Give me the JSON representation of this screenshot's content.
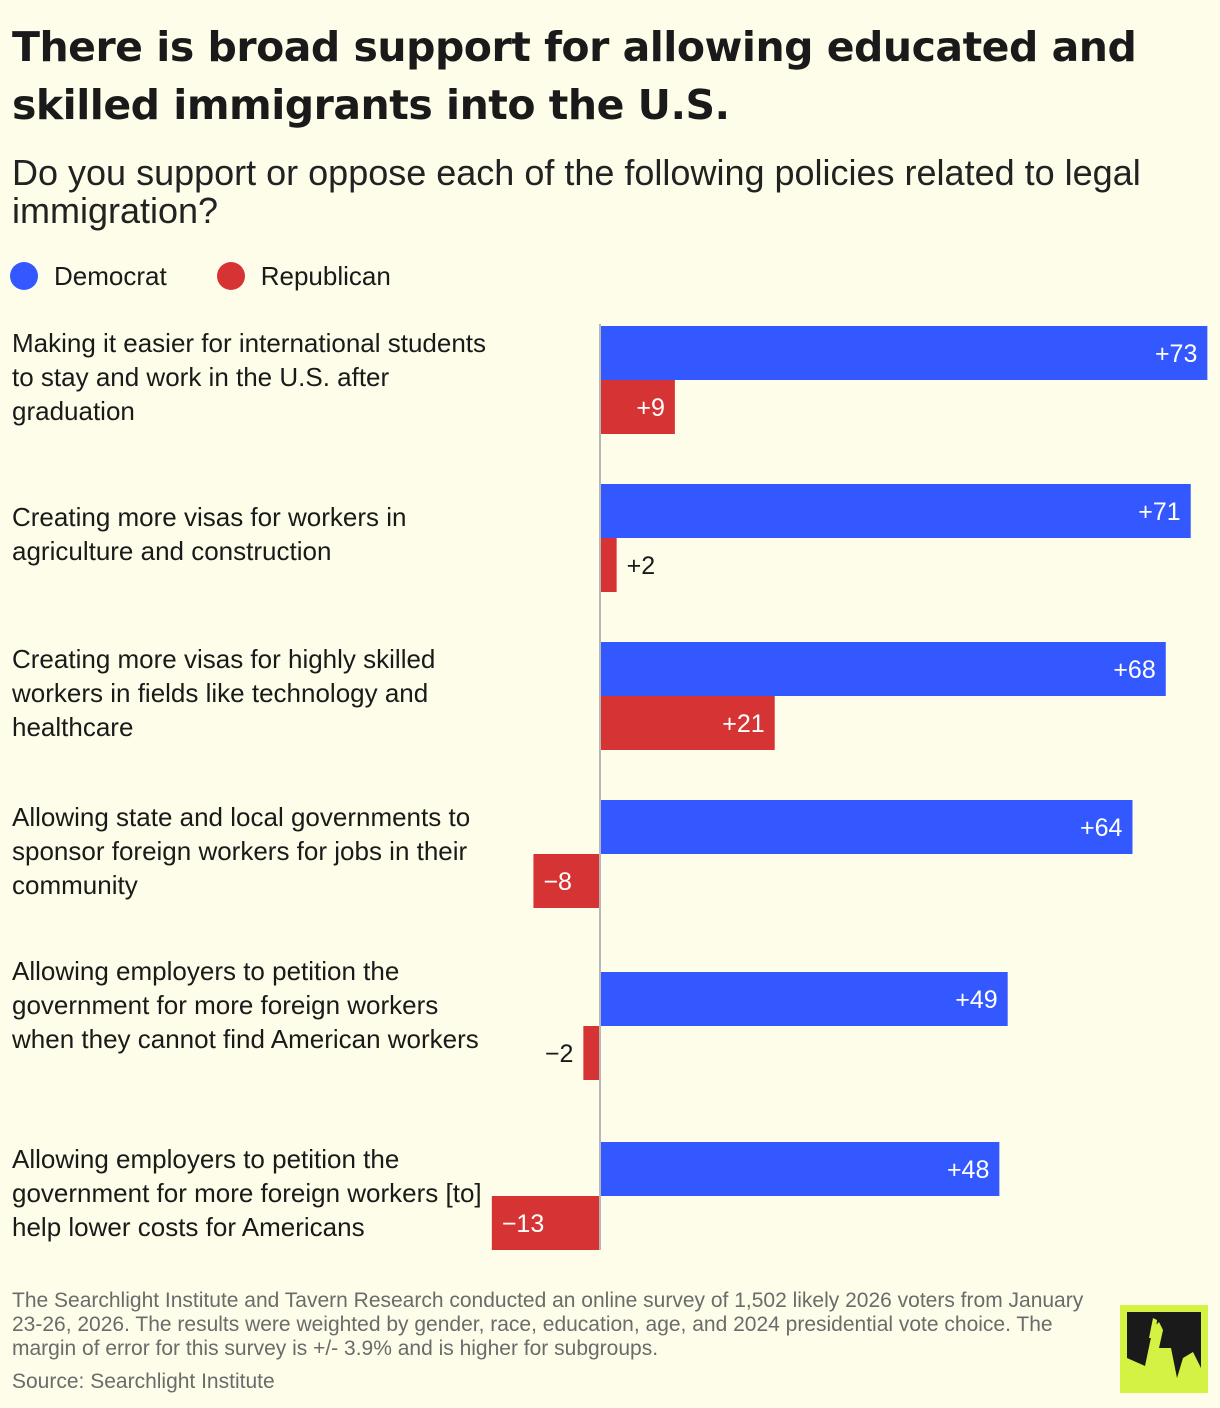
{
  "header": {
    "title": "There is broad support for allowing educated and skilled immigrants into the U.S.",
    "subtitle": "Do you support or oppose each of the following policies related to legal immigration?"
  },
  "legend": [
    {
      "label": "Democrat",
      "color": "#3358ff"
    },
    {
      "label": "Republican",
      "color": "#d63434"
    }
  ],
  "chart_data": {
    "type": "bar",
    "orientation": "horizontal",
    "categories": [
      "Making it easier for international students to stay and work in the U.S. after graduation",
      "Creating more visas for workers in agriculture and construction",
      "Creating more visas for highly skilled workers in fields like technology and healthcare",
      "Allowing state and local governments to sponsor foreign workers for jobs in their community",
      "Allowing employers to petition the government for more foreign workers when they cannot find American workers",
      "Allowing employers to petition the government for more foreign workers [to] help lower costs for Americans"
    ],
    "series": [
      {
        "name": "Democrat",
        "color": "#3358ff",
        "values": [
          73,
          71,
          68,
          64,
          49,
          48
        ],
        "labels": [
          "+73",
          "+71",
          "+68",
          "+64",
          "+49",
          "+48"
        ]
      },
      {
        "name": "Republican",
        "color": "#d63434",
        "values": [
          9,
          2,
          21,
          -8,
          -2,
          -13
        ],
        "labels": [
          "+9",
          "+2",
          "+21",
          "−8",
          "−2",
          "−13"
        ]
      }
    ],
    "xlim": [
      -13,
      73
    ],
    "grid": false,
    "legend_position": "top-left"
  },
  "footer": {
    "note": "The Searchlight Institute and Tavern Research conducted an online survey of 1,502 likely 2026 voters from January 23-26, 2026. The results were weighted by gender, race, education, age, and 2024 presidential vote choice. The margin of error for this survey is +/- 3.9% and is higher for subgroups.",
    "source": "Source: Searchlight Institute"
  },
  "logo": {
    "icon": "searchlight-logo-icon"
  }
}
